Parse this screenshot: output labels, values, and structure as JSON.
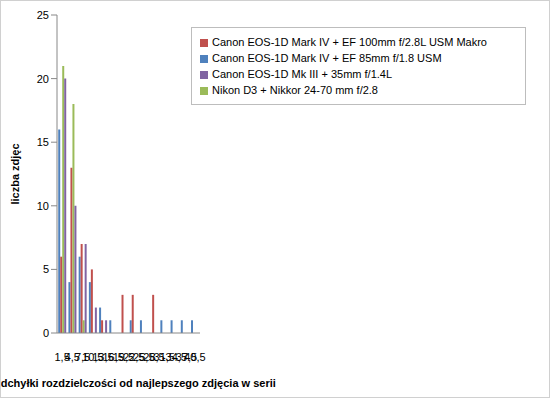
{
  "chart_data": {
    "type": "bar",
    "x_label": "% odchyłki  rozdzielczości  od  najlepszego  zdjęcia  w serii",
    "y_label": "liczba zdjęc",
    "categories": [
      "1,5",
      "4,5",
      "7,5",
      "10,5",
      "13,5",
      "16,5",
      "19,5",
      "22,5",
      "25,5",
      "28,5",
      "31,5",
      "-34,5",
      "-37,5",
      "40,5"
    ],
    "series": [
      {
        "name": "Canon EOS-1D Mark IV + EF 85mm f/1.8 USM",
        "color": "#4F81BD",
        "values": [
          16,
          4,
          6,
          4,
          2,
          1,
          0,
          1,
          1,
          0,
          1,
          1,
          1,
          1
        ]
      },
      {
        "name": "Canon EOS-1D Mark IV + EF 100mm f/2.8L USM Makro",
        "color": "#C0504D",
        "values": [
          6,
          13,
          7,
          5,
          1,
          0,
          3,
          3,
          0,
          3,
          0,
          0,
          0,
          0
        ]
      },
      {
        "name": "Nikon D3 + Nikkor 24-70 mm f/2.8",
        "color": "#9BBB59",
        "values": [
          21,
          18,
          1,
          0,
          0,
          0,
          0,
          0,
          0,
          0,
          0,
          0,
          0,
          0
        ]
      },
      {
        "name": "Canon EOS-1D Mk III + 35mm f/1.4L",
        "color": "#8064A2",
        "values": [
          20,
          10,
          7,
          2,
          1,
          0,
          0,
          0,
          0,
          0,
          0,
          0,
          0,
          0
        ]
      }
    ],
    "ylim": [
      0,
      25
    ],
    "yticks": [
      0,
      5,
      10,
      15,
      20,
      25
    ],
    "grid": false,
    "legend": "top-right"
  }
}
